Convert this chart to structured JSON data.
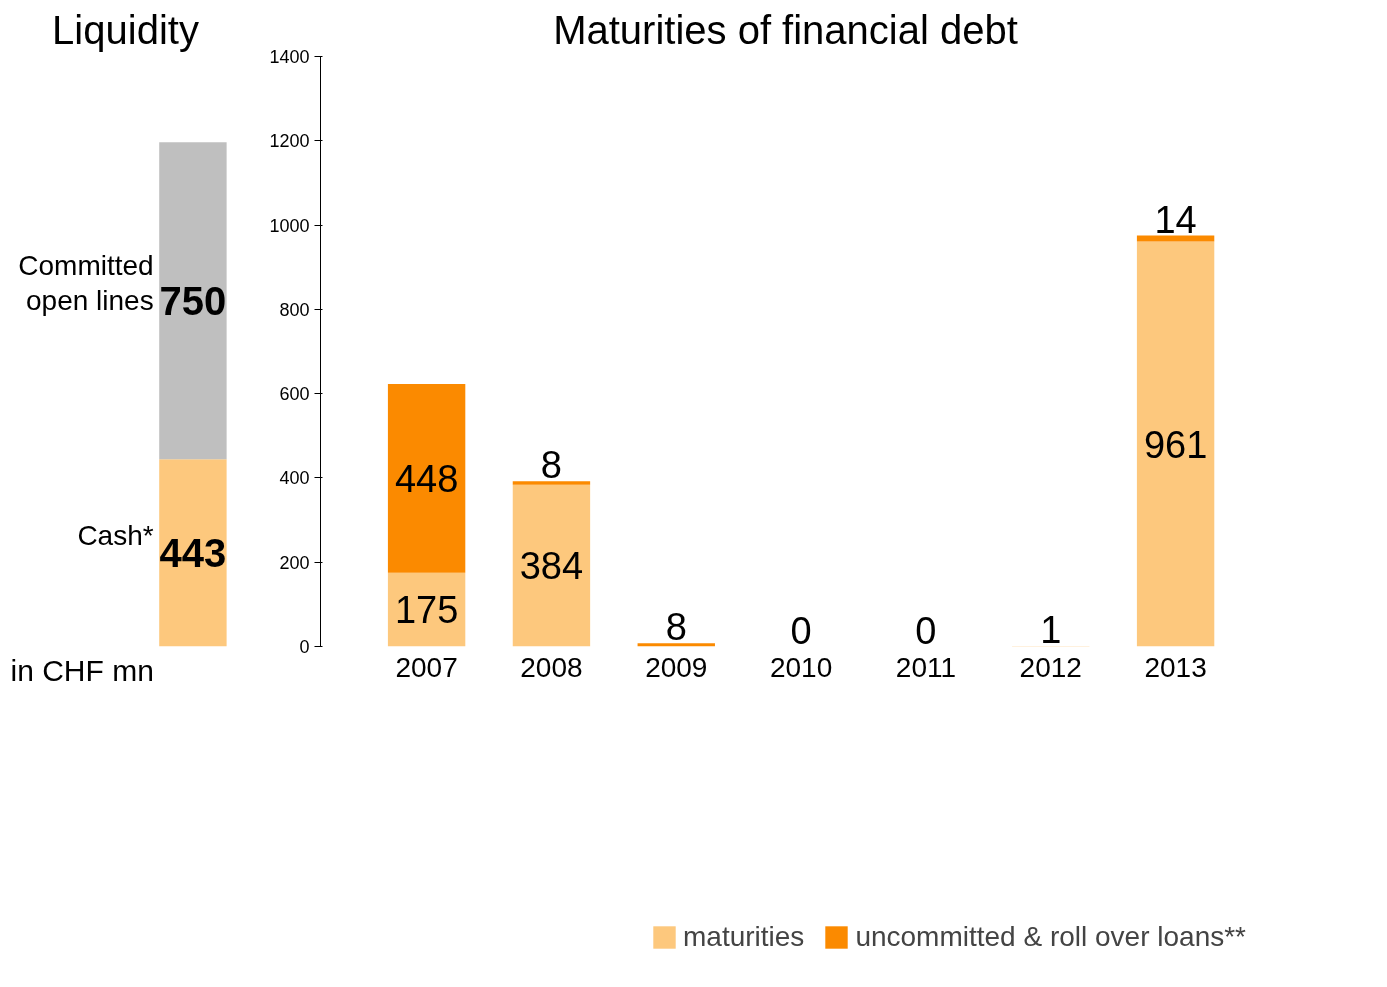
{
  "chart_data": [
    {
      "type": "bar",
      "title": "Liquidity",
      "stacked": true,
      "categories": [
        null
      ],
      "tick_labels": false,
      "data_labels": true,
      "series": [
        {
          "name": "Cash*",
          "color": "#fdc87d",
          "values": [
            443
          ]
        },
        {
          "name": "Committed open lines",
          "color": "#bfbfbf",
          "values": [
            750
          ]
        }
      ],
      "annotations": [
        "in CHF mn"
      ]
    },
    {
      "type": "bar",
      "title": "Maturities of financial debt",
      "stacked": true,
      "categories": [
        "2007",
        "2008",
        "2009",
        "2010",
        "2011",
        "2012",
        "2013"
      ],
      "ylim": [
        0,
        1400
      ],
      "yticks": [
        0,
        200,
        400,
        600,
        800,
        1000,
        1200,
        1400
      ],
      "grid": false,
      "legend": "bottom",
      "series": [
        {
          "name": "maturities",
          "color": "#fdc87d",
          "values": [
            175,
            384,
            0,
            0,
            0,
            1,
            961
          ],
          "value_labels": [
            "175",
            "384",
            null,
            "0",
            "0",
            "1",
            "961"
          ]
        },
        {
          "name": "uncommitted & roll over loans**",
          "color": "#fb8a00",
          "values": [
            448,
            8,
            8,
            0,
            0,
            0,
            14
          ],
          "value_labels": [
            "448",
            "8",
            "8",
            null,
            null,
            null,
            "14"
          ]
        }
      ]
    }
  ]
}
